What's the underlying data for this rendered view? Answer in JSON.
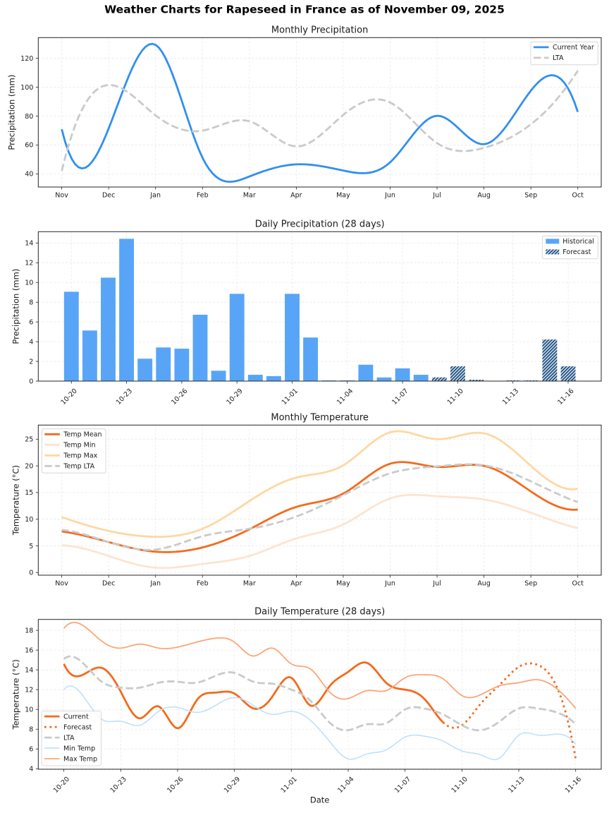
{
  "page": {
    "title": "Weather Charts for Rapeseed in France as of November 09, 2025"
  },
  "chart_data": [
    {
      "type": "line",
      "title": "Monthly Precipitation",
      "xlabel": "",
      "ylabel": "Precipitation (mm)",
      "categories": [
        "Nov",
        "Dec",
        "Jan",
        "Feb",
        "Mar",
        "Apr",
        "May",
        "Jun",
        "Jul",
        "Aug",
        "Sep",
        "Oct"
      ],
      "xticks": [
        "Nov",
        "Dec",
        "Jan",
        "Feb",
        "Mar",
        "Apr",
        "May",
        "Jun",
        "Jul",
        "Aug",
        "Sep",
        "Oct"
      ],
      "xlim": [
        -0.5,
        11.5
      ],
      "ylim": [
        30.9,
        134.3
      ],
      "yticks": [
        40,
        60,
        80,
        100,
        120
      ],
      "grid": true,
      "legend": "top-right",
      "series": [
        {
          "name": "Current Year",
          "style": "solid",
          "color": "#318ff0",
          "values": [
            70.9,
            71.4,
            129.3,
            51.2,
            38.2,
            46.6,
            42.3,
            48.0,
            80.2,
            60.5,
            97.6,
            82.9
          ]
        },
        {
          "name": "LTA",
          "style": "dashed",
          "color": "#c8cacc",
          "values": [
            42.0,
            101.5,
            80.5,
            69.9,
            76.4,
            59.0,
            80.8,
            89.4,
            61.3,
            58.0,
            74.3,
            111.4
          ]
        }
      ]
    },
    {
      "type": "bar",
      "title": "Daily Precipitation (28 days)",
      "xlabel": "",
      "ylabel": "Precipitation (mm)",
      "categories": [
        "10-20",
        "10-21",
        "10-22",
        "10-23",
        "10-24",
        "10-25",
        "10-26",
        "10-27",
        "10-28",
        "10-29",
        "10-30",
        "10-31",
        "11-01",
        "11-02",
        "11-03",
        "11-04",
        "11-05",
        "11-06",
        "11-07",
        "11-08",
        "11-09",
        "11-10",
        "11-11",
        "11-12",
        "11-13",
        "11-14",
        "11-15",
        "11-16"
      ],
      "xticks": [
        "10-20",
        "10-23",
        "10-26",
        "10-29",
        "11-01",
        "11-04",
        "11-07",
        "11-10",
        "11-13",
        "11-16"
      ],
      "xlim": [
        -1.8,
        28.8
      ],
      "ylim": [
        0,
        15.15
      ],
      "yticks": [
        0,
        2,
        4,
        6,
        8,
        10,
        12,
        14
      ],
      "grid": true,
      "legend": "top-right",
      "series": [
        {
          "name": "Historical",
          "color": "#58a5f8",
          "hatch": "",
          "values": [
            9.06,
            5.13,
            10.49,
            14.43,
            2.27,
            3.41,
            3.29,
            6.73,
            1.05,
            8.85,
            0.64,
            0.5,
            8.85,
            4.42,
            0.07,
            0.07,
            1.66,
            0.37,
            1.29,
            0.64,
            null,
            null,
            null,
            null,
            null,
            null,
            null,
            null
          ]
        },
        {
          "name": "Forecast",
          "color": "#9fcbf7",
          "hatch": "///",
          "values": [
            null,
            null,
            null,
            null,
            null,
            null,
            null,
            null,
            null,
            null,
            null,
            null,
            null,
            null,
            null,
            null,
            null,
            null,
            null,
            null,
            0.38,
            1.5,
            0.14,
            0.0,
            0.07,
            0.07,
            4.22,
            1.5
          ]
        }
      ]
    },
    {
      "type": "line",
      "title": "Monthly Temperature",
      "xlabel": "",
      "ylabel": "Temperature (°C)",
      "categories": [
        "Nov",
        "Dec",
        "Jan",
        "Feb",
        "Mar",
        "Apr",
        "May",
        "Jun",
        "Jul",
        "Aug",
        "Sep",
        "Oct"
      ],
      "xticks": [
        "Nov",
        "Dec",
        "Jan",
        "Feb",
        "Mar",
        "Apr",
        "May",
        "Jun",
        "Jul",
        "Aug",
        "Sep",
        "Oct"
      ],
      "xlim": [
        -0.5,
        11.5
      ],
      "ylim": [
        -0.5,
        27.65
      ],
      "yticks": [
        0,
        5,
        10,
        15,
        20,
        25
      ],
      "grid": true,
      "legend": "top-left",
      "series": [
        {
          "name": "Temp Mean",
          "style": "solid",
          "color": "#f46a1c",
          "values": [
            7.7,
            5.7,
            3.9,
            4.7,
            8.1,
            12.3,
            14.8,
            20.4,
            19.8,
            20.0,
            15.2,
            11.8
          ]
        },
        {
          "name": "Temp Min",
          "style": "solid",
          "color": "#fde4d0",
          "values": [
            5.1,
            3.1,
            0.9,
            1.6,
            3.1,
            6.4,
            9.0,
            13.9,
            14.3,
            13.7,
            11.2,
            8.3
          ]
        },
        {
          "name": "Temp Max",
          "style": "solid",
          "color": "#fdd8a2",
          "values": [
            10.4,
            7.8,
            6.7,
            8.2,
            13.4,
            17.8,
            20.1,
            26.3,
            25.0,
            26.1,
            20.0,
            15.7
          ]
        },
        {
          "name": "Temp LTA",
          "style": "dashed",
          "color": "#c8cacc",
          "values": [
            8.0,
            5.7,
            4.3,
            6.8,
            8.2,
            10.5,
            14.5,
            18.6,
            19.9,
            20.1,
            17.1,
            13.2
          ]
        }
      ]
    },
    {
      "type": "line",
      "title": "Daily Temperature (28 days)",
      "xlabel": "Date",
      "ylabel": "Temperature (°C)",
      "categories": [
        "10-20",
        "10-21",
        "10-22",
        "10-23",
        "10-24",
        "10-25",
        "10-26",
        "10-27",
        "10-28",
        "10-29",
        "10-30",
        "10-31",
        "11-01",
        "11-02",
        "11-03",
        "11-04",
        "11-05",
        "11-06",
        "11-07",
        "11-08",
        "11-09",
        "11-10",
        "11-11",
        "11-12",
        "11-13",
        "11-14",
        "11-15",
        "11-16"
      ],
      "xticks": [
        "10-20",
        "10-23",
        "10-26",
        "10-29",
        "11-01",
        "11-04",
        "11-07",
        "11-10",
        "11-13",
        "11-16"
      ],
      "xlim": [
        -1.35,
        28.35
      ],
      "ylim": [
        3.95,
        19.1
      ],
      "yticks": [
        4,
        6,
        8,
        10,
        12,
        14,
        16,
        18
      ],
      "grid": true,
      "legend": "lower-left",
      "series": [
        {
          "name": "Current",
          "style": "solid",
          "color": "#f46a1c",
          "values": [
            14.6,
            13.5,
            14.2,
            11.8,
            9.1,
            10.3,
            8.1,
            10.9,
            11.7,
            11.6,
            10.1,
            11.3,
            13.2,
            10.4,
            12.3,
            13.8,
            14.7,
            12.7,
            12.0,
            11.1,
            8.7,
            null,
            null,
            null,
            null,
            null,
            null,
            null
          ]
        },
        {
          "name": "Forecast",
          "style": "dotted",
          "color": "#f46a1c",
          "values": [
            null,
            null,
            null,
            null,
            null,
            null,
            null,
            null,
            null,
            null,
            null,
            null,
            null,
            null,
            null,
            null,
            null,
            null,
            null,
            null,
            8.7,
            8.4,
            10.6,
            12.5,
            14.3,
            14.5,
            12.3,
            5.0
          ]
        },
        {
          "name": "LTA",
          "style": "dashed",
          "color": "#c8cacc",
          "values": [
            15.1,
            14.7,
            12.8,
            12.2,
            12.2,
            12.7,
            12.8,
            12.7,
            13.4,
            13.7,
            12.8,
            12.6,
            12.0,
            10.9,
            8.7,
            7.9,
            8.5,
            8.6,
            10.0,
            10.1,
            9.5,
            8.4,
            7.9,
            8.8,
            10.1,
            10.1,
            9.7,
            8.5
          ]
        },
        {
          "name": "Min Temp",
          "style": "solid",
          "color": "#bfe0fb",
          "values": [
            12.0,
            11.4,
            9.0,
            8.8,
            8.4,
            9.8,
            10.2,
            9.7,
            10.4,
            11.2,
            10.4,
            9.5,
            9.8,
            8.9,
            6.8,
            5.0,
            5.5,
            5.9,
            7.2,
            7.3,
            6.8,
            5.8,
            5.4,
            5.1,
            7.4,
            7.4,
            7.5,
            6.5
          ]
        },
        {
          "name": "Max Temp",
          "style": "solid",
          "color": "#fca577",
          "values": [
            18.2,
            18.5,
            16.9,
            16.2,
            16.6,
            16.2,
            16.3,
            16.8,
            17.2,
            16.8,
            15.4,
            16.2,
            14.6,
            14.1,
            11.8,
            11.1,
            11.9,
            11.9,
            13.2,
            13.5,
            13.1,
            11.4,
            11.5,
            12.4,
            12.7,
            13.0,
            12.1,
            10.1
          ]
        }
      ]
    }
  ]
}
